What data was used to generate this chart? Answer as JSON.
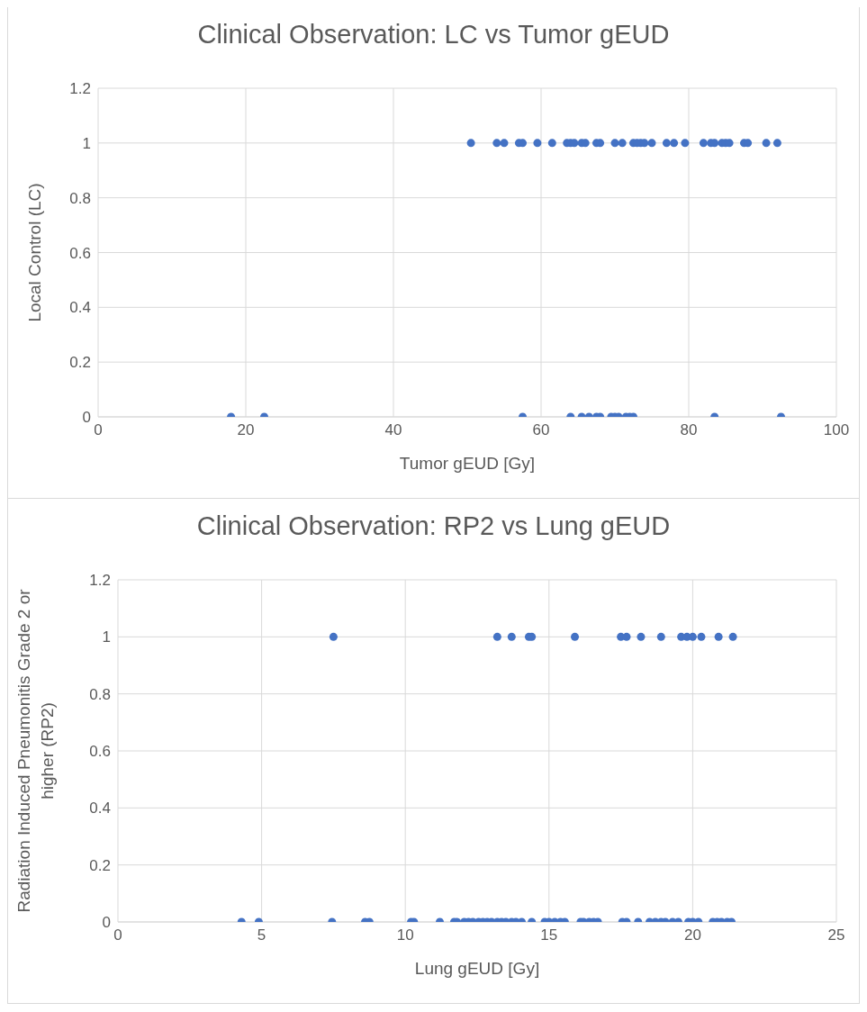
{
  "chart_data": [
    {
      "type": "scatter",
      "title": "Clinical Observation: LC vs Tumor gEUD",
      "xlabel": "Tumor gEUD [Gy]",
      "ylabel": "Local Control (LC)",
      "xlim": [
        0,
        100
      ],
      "xticks": [
        0,
        20,
        40,
        60,
        80,
        100
      ],
      "ylim": [
        0,
        1.2
      ],
      "yticks": [
        0,
        0.2,
        0.4,
        0.6,
        0.8,
        1,
        1.2
      ],
      "grid": true,
      "legend": false,
      "marker": "circle",
      "series": [
        {
          "color": "#4472c4",
          "x": [
            50.5,
            54,
            55,
            57,
            57.5,
            59.5,
            61.5,
            63.5,
            64,
            64.5,
            65.5,
            66,
            67.5,
            68,
            70,
            71,
            72.5,
            73,
            73.5,
            74,
            75,
            77,
            78,
            79.5,
            82,
            83,
            83.5,
            84.5,
            85,
            85.5,
            87.5,
            88,
            90.5,
            92,
            18,
            22.5,
            57.5,
            64,
            65.5,
            66.5,
            67.5,
            68,
            69.5,
            70,
            70.5,
            71.5,
            72,
            72.5,
            83.5,
            92.5
          ],
          "values": [
            1,
            1,
            1,
            1,
            1,
            1,
            1,
            1,
            1,
            1,
            1,
            1,
            1,
            1,
            1,
            1,
            1,
            1,
            1,
            1,
            1,
            1,
            1,
            1,
            1,
            1,
            1,
            1,
            1,
            1,
            1,
            1,
            1,
            1,
            0,
            0,
            0,
            0,
            0,
            0,
            0,
            0,
            0,
            0,
            0,
            0,
            0,
            0,
            0,
            0
          ]
        }
      ]
    },
    {
      "type": "scatter",
      "title": "Clinical Observation: RP2 vs Lung gEUD",
      "xlabel": "Lung gEUD [Gy]",
      "ylabel": "Radiation Induced Pneumonitis Grade 2 or higher (RP2)",
      "xlim": [
        0,
        25
      ],
      "xticks": [
        0,
        5,
        10,
        15,
        20,
        25
      ],
      "ylim": [
        0,
        1.2
      ],
      "yticks": [
        0,
        0.2,
        0.4,
        0.6,
        0.8,
        1,
        1.2
      ],
      "grid": true,
      "legend": false,
      "marker": "circle",
      "series": [
        {
          "color": "#4472c4",
          "x": [
            7.5,
            13.2,
            13.7,
            14.3,
            14.4,
            15.9,
            17.5,
            17.7,
            18.2,
            18.9,
            19.6,
            19.8,
            20,
            20.3,
            20.9,
            21.4,
            4.3,
            4.9,
            7.45,
            8.6,
            8.75,
            10.2,
            10.3,
            11.2,
            11.7,
            11.8,
            12.05,
            12.2,
            12.35,
            12.55,
            12.7,
            12.85,
            13,
            13.2,
            13.35,
            13.5,
            13.7,
            13.85,
            14.05,
            14.4,
            14.85,
            15,
            15.2,
            15.4,
            15.55,
            16.1,
            16.2,
            16.4,
            16.55,
            16.7,
            17.55,
            17.7,
            18.1,
            18.5,
            18.7,
            18.9,
            19.05,
            19.3,
            19.5,
            19.85,
            20,
            20.2,
            20.7,
            20.85,
            21,
            21.2,
            21.35
          ],
          "values": [
            1,
            1,
            1,
            1,
            1,
            1,
            1,
            1,
            1,
            1,
            1,
            1,
            1,
            1,
            1,
            1,
            0,
            0,
            0,
            0,
            0,
            0,
            0,
            0,
            0,
            0,
            0,
            0,
            0,
            0,
            0,
            0,
            0,
            0,
            0,
            0,
            0,
            0,
            0,
            0,
            0,
            0,
            0,
            0,
            0,
            0,
            0,
            0,
            0,
            0,
            0,
            0,
            0,
            0,
            0,
            0,
            0,
            0,
            0,
            0,
            0,
            0,
            0,
            0,
            0,
            0,
            0
          ]
        }
      ]
    }
  ]
}
